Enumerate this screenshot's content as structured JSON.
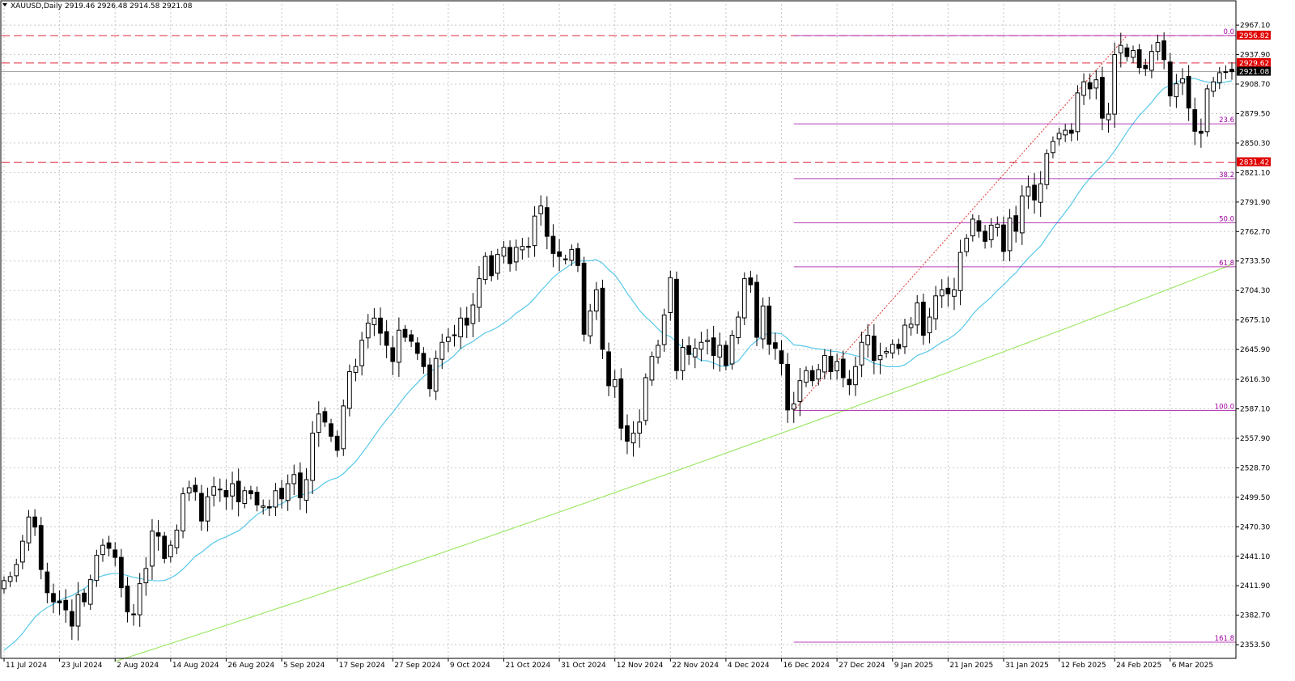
{
  "header": {
    "symbol_label": "XAUUSD,Daily",
    "ohlc_label": "2919.46 2926.48 2914.58 2921.08"
  },
  "colors": {
    "background": "#ffffff",
    "grid": "#c8c8c8",
    "candle_up_fill": "#ffffff",
    "candle_down_fill": "#000000",
    "candle_stroke": "#000000",
    "ma_fast": "#56c8e8",
    "ma_slow": "#9fe86a",
    "level_line": "#e0283c",
    "fib_line": "#a000a0",
    "tag_red": "#e00000",
    "tag_black": "#000000"
  },
  "chart_data": {
    "type": "candlestick",
    "symbol": "XAUUSD",
    "timeframe": "Daily",
    "ylim": [
      2340,
      2980
    ],
    "y_ticks": [
      "2967.10",
      "2937.90",
      "2908.70",
      "2879.50",
      "2850.30",
      "2821.10",
      "2791.90",
      "2762.70",
      "2733.50",
      "2704.30",
      "2675.10",
      "2645.90",
      "2616.30",
      "2587.10",
      "2557.90",
      "2528.70",
      "2499.50",
      "2470.30",
      "2441.10",
      "2411.90",
      "2382.70",
      "2353.50"
    ],
    "x_ticks": [
      {
        "i": 0,
        "label": "11 Jul 2024"
      },
      {
        "i": 9,
        "label": "23 Jul 2024"
      },
      {
        "i": 18,
        "label": "2 Aug 2024"
      },
      {
        "i": 27,
        "label": "14 Aug 2024"
      },
      {
        "i": 36,
        "label": "26 Aug 2024"
      },
      {
        "i": 45,
        "label": "5 Sep 2024"
      },
      {
        "i": 54,
        "label": "17 Sep 2024"
      },
      {
        "i": 63,
        "label": "27 Sep 2024"
      },
      {
        "i": 72,
        "label": "9 Oct 2024"
      },
      {
        "i": 81,
        "label": "21 Oct 2024"
      },
      {
        "i": 90,
        "label": "31 Oct 2024"
      },
      {
        "i": 99,
        "label": "12 Nov 2024"
      },
      {
        "i": 108,
        "label": "22 Nov 2024"
      },
      {
        "i": 117,
        "label": "4 Dec 2024"
      },
      {
        "i": 126,
        "label": "16 Dec 2024"
      },
      {
        "i": 135,
        "label": "27 Dec 2024"
      },
      {
        "i": 144,
        "label": "9 Jan 2025"
      },
      {
        "i": 153,
        "label": "21 Jan 2025"
      },
      {
        "i": 162,
        "label": "31 Jan 2025"
      },
      {
        "i": 171,
        "label": "12 Feb 2025"
      },
      {
        "i": 180,
        "label": "24 Feb 2025"
      },
      {
        "i": 189,
        "label": "6 Mar 2025"
      }
    ],
    "closes": [
      2417,
      2421,
      2433,
      2456,
      2480,
      2470,
      2428,
      2405,
      2396,
      2395,
      2388,
      2372,
      2403,
      2396,
      2418,
      2442,
      2452,
      2449,
      2440,
      2410,
      2386,
      2384,
      2414,
      2429,
      2466,
      2461,
      2439,
      2452,
      2467,
      2503,
      2509,
      2505,
      2476,
      2500,
      2510,
      2507,
      2500,
      2513,
      2495,
      2506,
      2503,
      2492,
      2491,
      2489,
      2506,
      2498,
      2513,
      2522,
      2499,
      2517,
      2563,
      2582,
      2574,
      2560,
      2546,
      2590,
      2624,
      2629,
      2655,
      2672,
      2677,
      2662,
      2650,
      2634,
      2665,
      2658,
      2654,
      2642,
      2629,
      2607,
      2637,
      2653,
      2658,
      2660,
      2677,
      2670,
      2690,
      2716,
      2738,
      2719,
      2740,
      2747,
      2731,
      2747,
      2748,
      2748,
      2778,
      2788,
      2758,
      2741,
      2738,
      2735,
      2745,
      2729,
      2661,
      2684,
      2705,
      2646,
      2610,
      2616,
      2568,
      2555,
      2563,
      2574,
      2618,
      2639,
      2650,
      2680,
      2717,
      2625,
      2648,
      2641,
      2647,
      2653,
      2655,
      2640,
      2650,
      2630,
      2660,
      2678,
      2716,
      2710,
      2658,
      2689,
      2651,
      2647,
      2632,
      2586,
      2592,
      2615,
      2625,
      2615,
      2626,
      2640,
      2624,
      2634,
      2618,
      2611,
      2629,
      2653,
      2660,
      2635,
      2640,
      2644,
      2651,
      2647,
      2670,
      2671,
      2692,
      2660,
      2678,
      2699,
      2705,
      2701,
      2705,
      2742,
      2756,
      2775,
      2763,
      2753,
      2769,
      2770,
      2743,
      2776,
      2763,
      2798,
      2807,
      2794,
      2810,
      2840,
      2852,
      2860,
      2863,
      2860,
      2900,
      2911,
      2904,
      2913,
      2875,
      2879,
      2938,
      2947,
      2936,
      2942,
      2925,
      2924,
      2941,
      2950,
      2933,
      2897,
      2909,
      2914,
      2885,
      2862,
      2860,
      2904,
      2911,
      2920,
      2921,
      2921
    ],
    "ma_fast_ref": {
      "from_i": 0,
      "approx_start": 2348,
      "approx_end": 2912
    },
    "ma_slow_ref": {
      "from_i": 18,
      "approx_start": 2337,
      "approx_end": 2730
    },
    "horizontal_levels": [
      {
        "value": 2956.82,
        "label": "2956.82",
        "tag": "red"
      },
      {
        "value": 2929.62,
        "label": "2929.62",
        "tag": "red"
      },
      {
        "value": 2921.08,
        "label": "2921.08",
        "tag": "black"
      },
      {
        "value": 2831.42,
        "label": "2831.42",
        "tag": "red"
      }
    ],
    "fibonacci": {
      "start_i": 128,
      "levels": [
        {
          "ratio": "0.0",
          "value": 2956.82
        },
        {
          "ratio": "23.6",
          "value": 2869.4
        },
        {
          "ratio": "38.2",
          "value": 2815.1
        },
        {
          "ratio": "50.0",
          "value": 2771.3
        },
        {
          "ratio": "61.8",
          "value": 2727.8
        },
        {
          "ratio": "100.0",
          "value": 2585.5
        },
        {
          "ratio": "161.8",
          "value": 2356.0
        }
      ]
    }
  }
}
